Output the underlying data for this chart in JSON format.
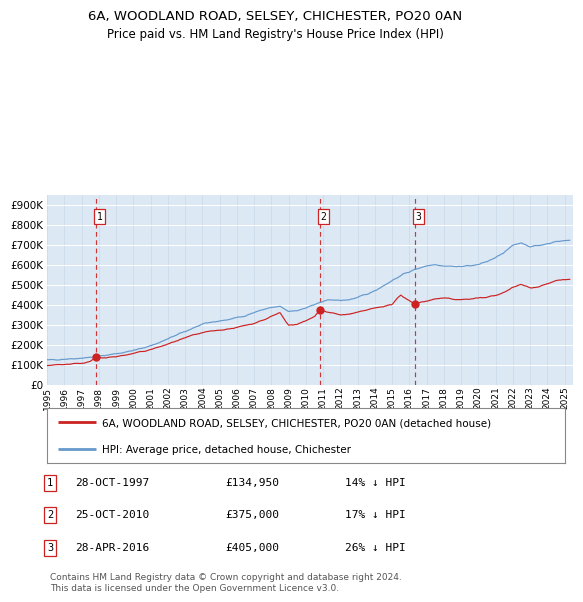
{
  "title_line1": "6A, WOODLAND ROAD, SELSEY, CHICHESTER, PO20 0AN",
  "title_line2": "Price paid vs. HM Land Registry's House Price Index (HPI)",
  "legend_line1": "6A, WOODLAND ROAD, SELSEY, CHICHESTER, PO20 0AN (detached house)",
  "legend_line2": "HPI: Average price, detached house, Chichester",
  "sale_points": [
    {
      "date_num": 1997.82,
      "value": 134950,
      "label": "1"
    },
    {
      "date_num": 2010.81,
      "value": 375000,
      "label": "2"
    },
    {
      "date_num": 2016.32,
      "value": 405000,
      "label": "3"
    }
  ],
  "sale_info": [
    {
      "num": "1",
      "date": "28-OCT-1997",
      "price": "£134,950",
      "pct": "14% ↓ HPI"
    },
    {
      "num": "2",
      "date": "25-OCT-2010",
      "price": "£375,000",
      "pct": "17% ↓ HPI"
    },
    {
      "num": "3",
      "date": "28-APR-2016",
      "price": "£405,000",
      "pct": "26% ↓ HPI"
    }
  ],
  "hpi_color": "#6699cc",
  "price_color": "#cc2222",
  "vline_color": "#cc2222",
  "bg_color": "#dce9f5",
  "ylim": [
    0,
    950000
  ],
  "xlim_start": 1995.0,
  "xlim_end": 2025.5,
  "footer": "Contains HM Land Registry data © Crown copyright and database right 2024.\nThis data is licensed under the Open Government Licence v3.0.",
  "hpi_anchors": [
    [
      1995.0,
      122000
    ],
    [
      1995.5,
      125000
    ],
    [
      1996.0,
      128000
    ],
    [
      1996.5,
      130000
    ],
    [
      1997.0,
      133000
    ],
    [
      1997.5,
      136000
    ],
    [
      1998.0,
      142000
    ],
    [
      1998.5,
      148000
    ],
    [
      1999.0,
      155000
    ],
    [
      1999.5,
      162000
    ],
    [
      2000.0,
      170000
    ],
    [
      2000.5,
      182000
    ],
    [
      2001.0,
      195000
    ],
    [
      2001.5,
      210000
    ],
    [
      2002.0,
      228000
    ],
    [
      2002.5,
      248000
    ],
    [
      2003.0,
      265000
    ],
    [
      2003.5,
      285000
    ],
    [
      2004.0,
      300000
    ],
    [
      2004.5,
      312000
    ],
    [
      2005.0,
      318000
    ],
    [
      2005.5,
      325000
    ],
    [
      2006.0,
      335000
    ],
    [
      2006.5,
      345000
    ],
    [
      2007.0,
      360000
    ],
    [
      2007.5,
      375000
    ],
    [
      2008.0,
      385000
    ],
    [
      2008.5,
      390000
    ],
    [
      2009.0,
      365000
    ],
    [
      2009.5,
      370000
    ],
    [
      2010.0,
      385000
    ],
    [
      2010.5,
      400000
    ],
    [
      2011.0,
      415000
    ],
    [
      2011.5,
      425000
    ],
    [
      2012.0,
      420000
    ],
    [
      2012.5,
      425000
    ],
    [
      2013.0,
      435000
    ],
    [
      2013.5,
      450000
    ],
    [
      2014.0,
      470000
    ],
    [
      2014.5,
      495000
    ],
    [
      2015.0,
      520000
    ],
    [
      2015.5,
      545000
    ],
    [
      2016.0,
      565000
    ],
    [
      2016.5,
      580000
    ],
    [
      2017.0,
      595000
    ],
    [
      2017.5,
      600000
    ],
    [
      2018.0,
      595000
    ],
    [
      2018.5,
      592000
    ],
    [
      2019.0,
      590000
    ],
    [
      2019.5,
      595000
    ],
    [
      2020.0,
      600000
    ],
    [
      2020.5,
      615000
    ],
    [
      2021.0,
      635000
    ],
    [
      2021.5,
      660000
    ],
    [
      2022.0,
      695000
    ],
    [
      2022.5,
      710000
    ],
    [
      2023.0,
      690000
    ],
    [
      2023.5,
      695000
    ],
    [
      2024.0,
      705000
    ],
    [
      2024.5,
      715000
    ],
    [
      2025.3,
      722000
    ]
  ],
  "price_anchors": [
    [
      1995.0,
      97000
    ],
    [
      1995.5,
      99000
    ],
    [
      1996.0,
      101000
    ],
    [
      1996.5,
      104000
    ],
    [
      1997.0,
      108000
    ],
    [
      1997.5,
      115000
    ],
    [
      1997.82,
      134950
    ],
    [
      1998.0,
      132000
    ],
    [
      1998.5,
      135000
    ],
    [
      1999.0,
      140000
    ],
    [
      1999.5,
      147000
    ],
    [
      2000.0,
      155000
    ],
    [
      2000.5,
      165000
    ],
    [
      2001.0,
      175000
    ],
    [
      2001.5,
      188000
    ],
    [
      2002.0,
      202000
    ],
    [
      2002.5,
      218000
    ],
    [
      2003.0,
      232000
    ],
    [
      2003.5,
      248000
    ],
    [
      2004.0,
      258000
    ],
    [
      2004.5,
      268000
    ],
    [
      2005.0,
      272000
    ],
    [
      2005.5,
      278000
    ],
    [
      2006.0,
      285000
    ],
    [
      2006.5,
      295000
    ],
    [
      2007.0,
      308000
    ],
    [
      2007.5,
      322000
    ],
    [
      2008.0,
      340000
    ],
    [
      2008.5,
      358000
    ],
    [
      2009.0,
      295000
    ],
    [
      2009.5,
      302000
    ],
    [
      2010.0,
      318000
    ],
    [
      2010.5,
      340000
    ],
    [
      2010.81,
      375000
    ],
    [
      2011.0,
      368000
    ],
    [
      2011.5,
      358000
    ],
    [
      2012.0,
      348000
    ],
    [
      2012.5,
      352000
    ],
    [
      2013.0,
      360000
    ],
    [
      2013.5,
      372000
    ],
    [
      2014.0,
      382000
    ],
    [
      2014.5,
      392000
    ],
    [
      2015.0,
      400000
    ],
    [
      2015.5,
      448000
    ],
    [
      2016.0,
      420000
    ],
    [
      2016.32,
      405000
    ],
    [
      2016.5,
      408000
    ],
    [
      2017.0,
      418000
    ],
    [
      2017.5,
      428000
    ],
    [
      2018.0,
      432000
    ],
    [
      2018.5,
      428000
    ],
    [
      2019.0,
      425000
    ],
    [
      2019.5,
      428000
    ],
    [
      2020.0,
      432000
    ],
    [
      2020.5,
      438000
    ],
    [
      2021.0,
      445000
    ],
    [
      2021.5,
      460000
    ],
    [
      2022.0,
      488000
    ],
    [
      2022.5,
      500000
    ],
    [
      2023.0,
      485000
    ],
    [
      2023.5,
      490000
    ],
    [
      2024.0,
      505000
    ],
    [
      2024.5,
      518000
    ],
    [
      2025.3,
      528000
    ]
  ]
}
